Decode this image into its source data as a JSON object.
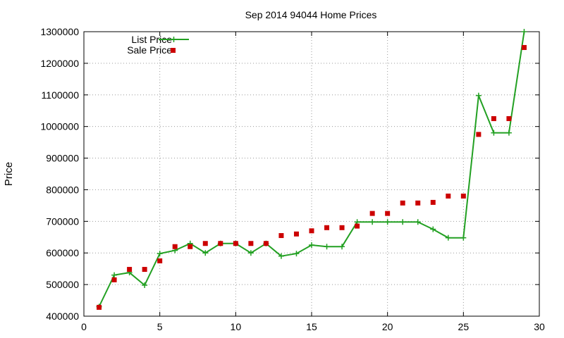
{
  "chart_data": {
    "type": "line",
    "title": "Sep 2014 94044 Home Prices",
    "xlabel": "",
    "ylabel": "Price",
    "xlim": [
      0,
      30
    ],
    "ylim": [
      400000,
      1300000
    ],
    "x_ticks": [
      0,
      5,
      10,
      15,
      20,
      25,
      30
    ],
    "y_ticks": [
      400000,
      500000,
      600000,
      700000,
      800000,
      900000,
      1000000,
      1100000,
      1200000,
      1300000
    ],
    "grid": true,
    "legend_position": "top-left",
    "series": [
      {
        "name": "List Price",
        "style": "line-with-plus-markers",
        "color": "#22a022",
        "x": [
          1,
          2,
          3,
          4,
          5,
          6,
          7,
          8,
          9,
          10,
          11,
          12,
          13,
          14,
          15,
          16,
          17,
          18,
          19,
          20,
          21,
          22,
          23,
          24,
          25,
          26,
          27,
          28,
          29
        ],
        "values": [
          430000,
          530000,
          538000,
          498000,
          598000,
          608000,
          630000,
          600000,
          630000,
          630000,
          600000,
          630000,
          590000,
          598000,
          625000,
          620000,
          620000,
          698000,
          698000,
          698000,
          698000,
          698000,
          675000,
          648000,
          648000,
          1098000,
          980000,
          980000,
          1300000
        ]
      },
      {
        "name": "Sale Price",
        "style": "square-markers",
        "color": "#cc0000",
        "x": [
          1,
          2,
          3,
          4,
          5,
          6,
          7,
          8,
          9,
          10,
          11,
          12,
          13,
          14,
          15,
          16,
          17,
          18,
          19,
          20,
          21,
          22,
          23,
          24,
          25,
          26,
          27,
          28,
          29
        ],
        "values": [
          428000,
          515000,
          548000,
          548000,
          575000,
          620000,
          620000,
          630000,
          630000,
          630000,
          630000,
          630000,
          655000,
          660000,
          670000,
          680000,
          680000,
          685000,
          725000,
          725000,
          758000,
          758000,
          760000,
          780000,
          780000,
          975000,
          1025000,
          1025000,
          1250000
        ]
      }
    ]
  }
}
